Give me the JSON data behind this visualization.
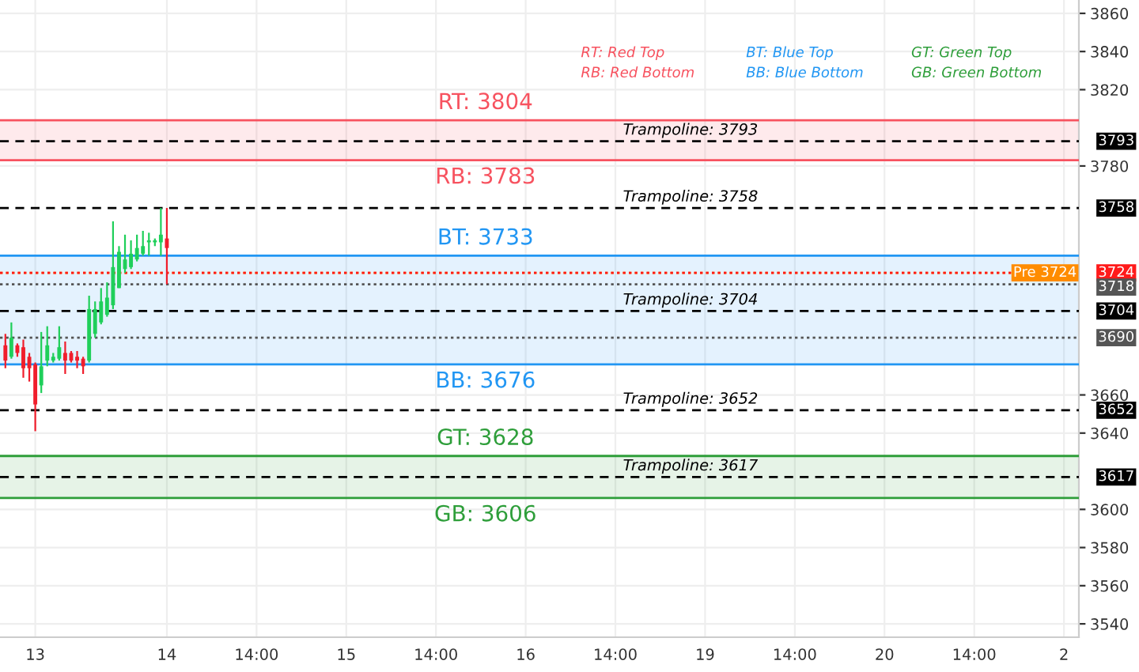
{
  "chart_data": {
    "type": "candlestick",
    "categories": [
      null,
      null,
      null,
      null,
      null,
      "13",
      null,
      null,
      null,
      null,
      null,
      null,
      null,
      null,
      null,
      null,
      null,
      null,
      null,
      null,
      null,
      null,
      null,
      null,
      null,
      null,
      null,
      "14",
      null,
      null,
      null,
      null,
      null,
      null,
      null,
      null,
      null,
      null,
      null,
      null,
      null,
      null,
      "14:00",
      null,
      null,
      null,
      null,
      null,
      null,
      null,
      null,
      null,
      null,
      null,
      null,
      null,
      null,
      "15",
      null,
      null,
      null,
      null,
      null,
      null,
      null,
      null,
      null,
      null,
      null,
      null,
      null,
      null,
      "14:00",
      null,
      null,
      null,
      null,
      null,
      null,
      null,
      null,
      null,
      null,
      null,
      null,
      null,
      null,
      "16",
      null,
      null,
      null,
      null,
      null,
      null,
      null,
      null,
      null,
      null,
      null,
      null,
      null,
      null,
      "14:00",
      null,
      null,
      null,
      null,
      null,
      null,
      null,
      null,
      null,
      null,
      null,
      null,
      null,
      null,
      "19",
      null,
      null,
      null,
      null,
      null,
      null,
      null,
      null,
      null,
      null,
      null,
      null,
      null,
      null,
      "14:00",
      null,
      null,
      null,
      null,
      null,
      null,
      null,
      null,
      null,
      null,
      null,
      null,
      null,
      null,
      "20",
      null,
      null,
      null,
      null,
      null,
      null,
      null,
      null,
      null,
      null,
      null,
      null,
      null,
      null,
      "14:00",
      null,
      null,
      null,
      null,
      null,
      null,
      null,
      null,
      null,
      null,
      null,
      null,
      null,
      null,
      "2",
      null,
      null
    ],
    "ohlc": [
      [
        3686,
        3692,
        3674,
        3678
      ],
      [
        3680,
        3698,
        3679,
        3690
      ],
      [
        3686,
        3687,
        3680,
        3682
      ],
      [
        3685,
        3689,
        3669,
        3674
      ],
      [
        3680,
        3682,
        3667,
        3674
      ],
      [
        3676,
        3677,
        3641,
        3655
      ],
      [
        3665,
        3693,
        3661,
        3675
      ],
      [
        3678,
        3696,
        3675,
        3686
      ],
      [
        3678,
        3682,
        3677,
        3680
      ],
      [
        3679,
        3696,
        3678,
        3685
      ],
      [
        3682,
        3688,
        3671,
        3678
      ],
      [
        3682,
        3683,
        3677,
        3678
      ],
      [
        3680,
        3683,
        3674,
        3678
      ],
      [
        3679,
        3680,
        3671,
        3675
      ],
      [
        3678,
        3712,
        3677,
        3705
      ],
      [
        3692,
        3709,
        3690,
        3705
      ],
      [
        3698,
        3716,
        3697,
        3709
      ],
      [
        3702,
        3719,
        3701,
        3711
      ],
      [
        3707,
        3751,
        3705,
        3727
      ],
      [
        3716,
        3738,
        3716,
        3735
      ],
      [
        3726,
        3744,
        3724,
        3731
      ],
      [
        3727,
        3741,
        3726,
        3734
      ],
      [
        3731,
        3744,
        3730,
        3737
      ],
      [
        3734,
        3746,
        3733,
        3738
      ],
      [
        3740,
        3745,
        3733,
        3741
      ],
      [
        3740,
        3742,
        3738,
        3741
      ],
      [
        3740,
        3758,
        3733,
        3744
      ],
      [
        3742,
        3758,
        3718,
        3737
      ],
      null,
      null,
      null,
      null,
      null,
      null,
      null,
      null,
      null,
      null,
      null,
      null,
      null,
      null,
      null,
      null,
      null,
      null,
      null,
      null,
      null,
      null,
      null,
      null,
      null,
      null,
      null,
      null,
      null,
      null,
      null,
      null,
      null,
      null,
      null,
      null,
      null,
      null,
      null,
      null,
      null,
      null,
      null,
      null,
      null,
      null,
      null,
      null,
      null,
      null,
      null,
      null,
      null,
      null,
      null,
      null,
      null,
      null,
      null,
      null,
      null,
      null,
      null,
      null,
      null,
      null,
      null,
      null,
      null,
      null,
      null,
      null,
      null,
      null,
      null,
      null,
      null,
      null,
      null,
      null,
      null,
      null,
      null,
      null,
      null,
      null,
      null,
      null,
      null,
      null,
      null,
      null,
      null,
      null,
      null,
      null,
      null,
      null,
      null,
      null,
      null,
      null,
      null,
      null,
      null,
      null,
      null,
      null,
      null,
      null,
      null,
      null,
      null,
      null,
      null,
      null,
      null,
      null,
      null,
      null,
      null,
      null,
      null,
      null,
      null,
      null,
      null,
      null,
      null,
      null,
      null,
      null,
      null,
      null,
      null,
      null,
      null,
      null,
      null,
      null,
      null,
      null,
      null,
      null,
      null,
      null,
      null,
      null,
      null,
      null,
      null,
      null
    ],
    "ylim": [
      3533,
      3867
    ],
    "yticks": [
      3540,
      3560,
      3580,
      3600,
      3640,
      3660,
      3780,
      3820,
      3840,
      3860
    ],
    "grid": true,
    "bands": [
      {
        "axis": "y",
        "from": 3783,
        "to": 3804,
        "color": "#f7525f"
      },
      {
        "axis": "y",
        "from": 3676,
        "to": 3733,
        "color": "#2196f3"
      },
      {
        "axis": "y",
        "from": 3606,
        "to": 3628,
        "color": "#2e9e3a"
      }
    ],
    "ref_lines": [
      {
        "axis": "y",
        "value": 3804,
        "color": "#f7525f",
        "line_style": "solid"
      },
      {
        "axis": "y",
        "value": 3783,
        "color": "#f7525f",
        "line_style": "solid"
      },
      {
        "axis": "y",
        "value": 3733,
        "color": "#2196f3",
        "line_style": "solid"
      },
      {
        "axis": "y",
        "value": 3676,
        "color": "#2196f3",
        "line_style": "solid"
      },
      {
        "axis": "y",
        "value": 3628,
        "color": "#2e9e3a",
        "line_style": "solid"
      },
      {
        "axis": "y",
        "value": 3606,
        "color": "#2e9e3a",
        "line_style": "solid"
      },
      {
        "axis": "y",
        "value": 3793,
        "label": "3793",
        "color": "#000000",
        "line_style": "dashed"
      },
      {
        "axis": "y",
        "value": 3758,
        "label": "3758",
        "color": "#000000",
        "line_style": "dashed"
      },
      {
        "axis": "y",
        "value": 3724,
        "label": "Pre 3724",
        "color": "#ff8c00",
        "line_style": "dotted"
      },
      {
        "axis": "y",
        "value": 3724,
        "label": "3724",
        "color": "#ff1a1a",
        "line_style": "dotted"
      },
      {
        "axis": "y",
        "value": 3718,
        "label": "3718",
        "color": "#555555",
        "line_style": "dotted"
      },
      {
        "axis": "y",
        "value": 3704,
        "label": "3704",
        "color": "#000000",
        "line_style": "dashed"
      },
      {
        "axis": "y",
        "value": 3690,
        "label": "3690",
        "color": "#555555",
        "line_style": "dotted"
      },
      {
        "axis": "y",
        "value": 3652,
        "label": "3652",
        "color": "#000000",
        "line_style": "dashed"
      },
      {
        "axis": "y",
        "value": 3617,
        "label": "3617",
        "color": "#000000",
        "line_style": "dashed"
      }
    ],
    "annotations": [
      "RT: Red Top",
      "RB: Red Bottom",
      "BT: Blue Top",
      "BB: Blue Bottom",
      "GT: Green Top",
      "GB: Green Bottom",
      {
        "text": "RT: 3804",
        "y": 3804
      },
      {
        "text": "RB: 3783",
        "y": 3783
      },
      {
        "text": "BT: 3733",
        "y": 3733
      },
      {
        "text": "BB: 3676",
        "y": 3676
      },
      {
        "text": "GT: 3628",
        "y": 3628
      },
      {
        "text": "GB: 3606",
        "y": 3606
      },
      {
        "text": "Trampoline: 3793",
        "y": 3793
      },
      {
        "text": "Trampoline: 3758",
        "y": 3758
      },
      {
        "text": "Trampoline: 3704",
        "y": 3704
      },
      {
        "text": "Trampoline: 3652",
        "y": 3652
      },
      {
        "text": "Trampoline: 3617",
        "y": 3617
      }
    ]
  }
}
